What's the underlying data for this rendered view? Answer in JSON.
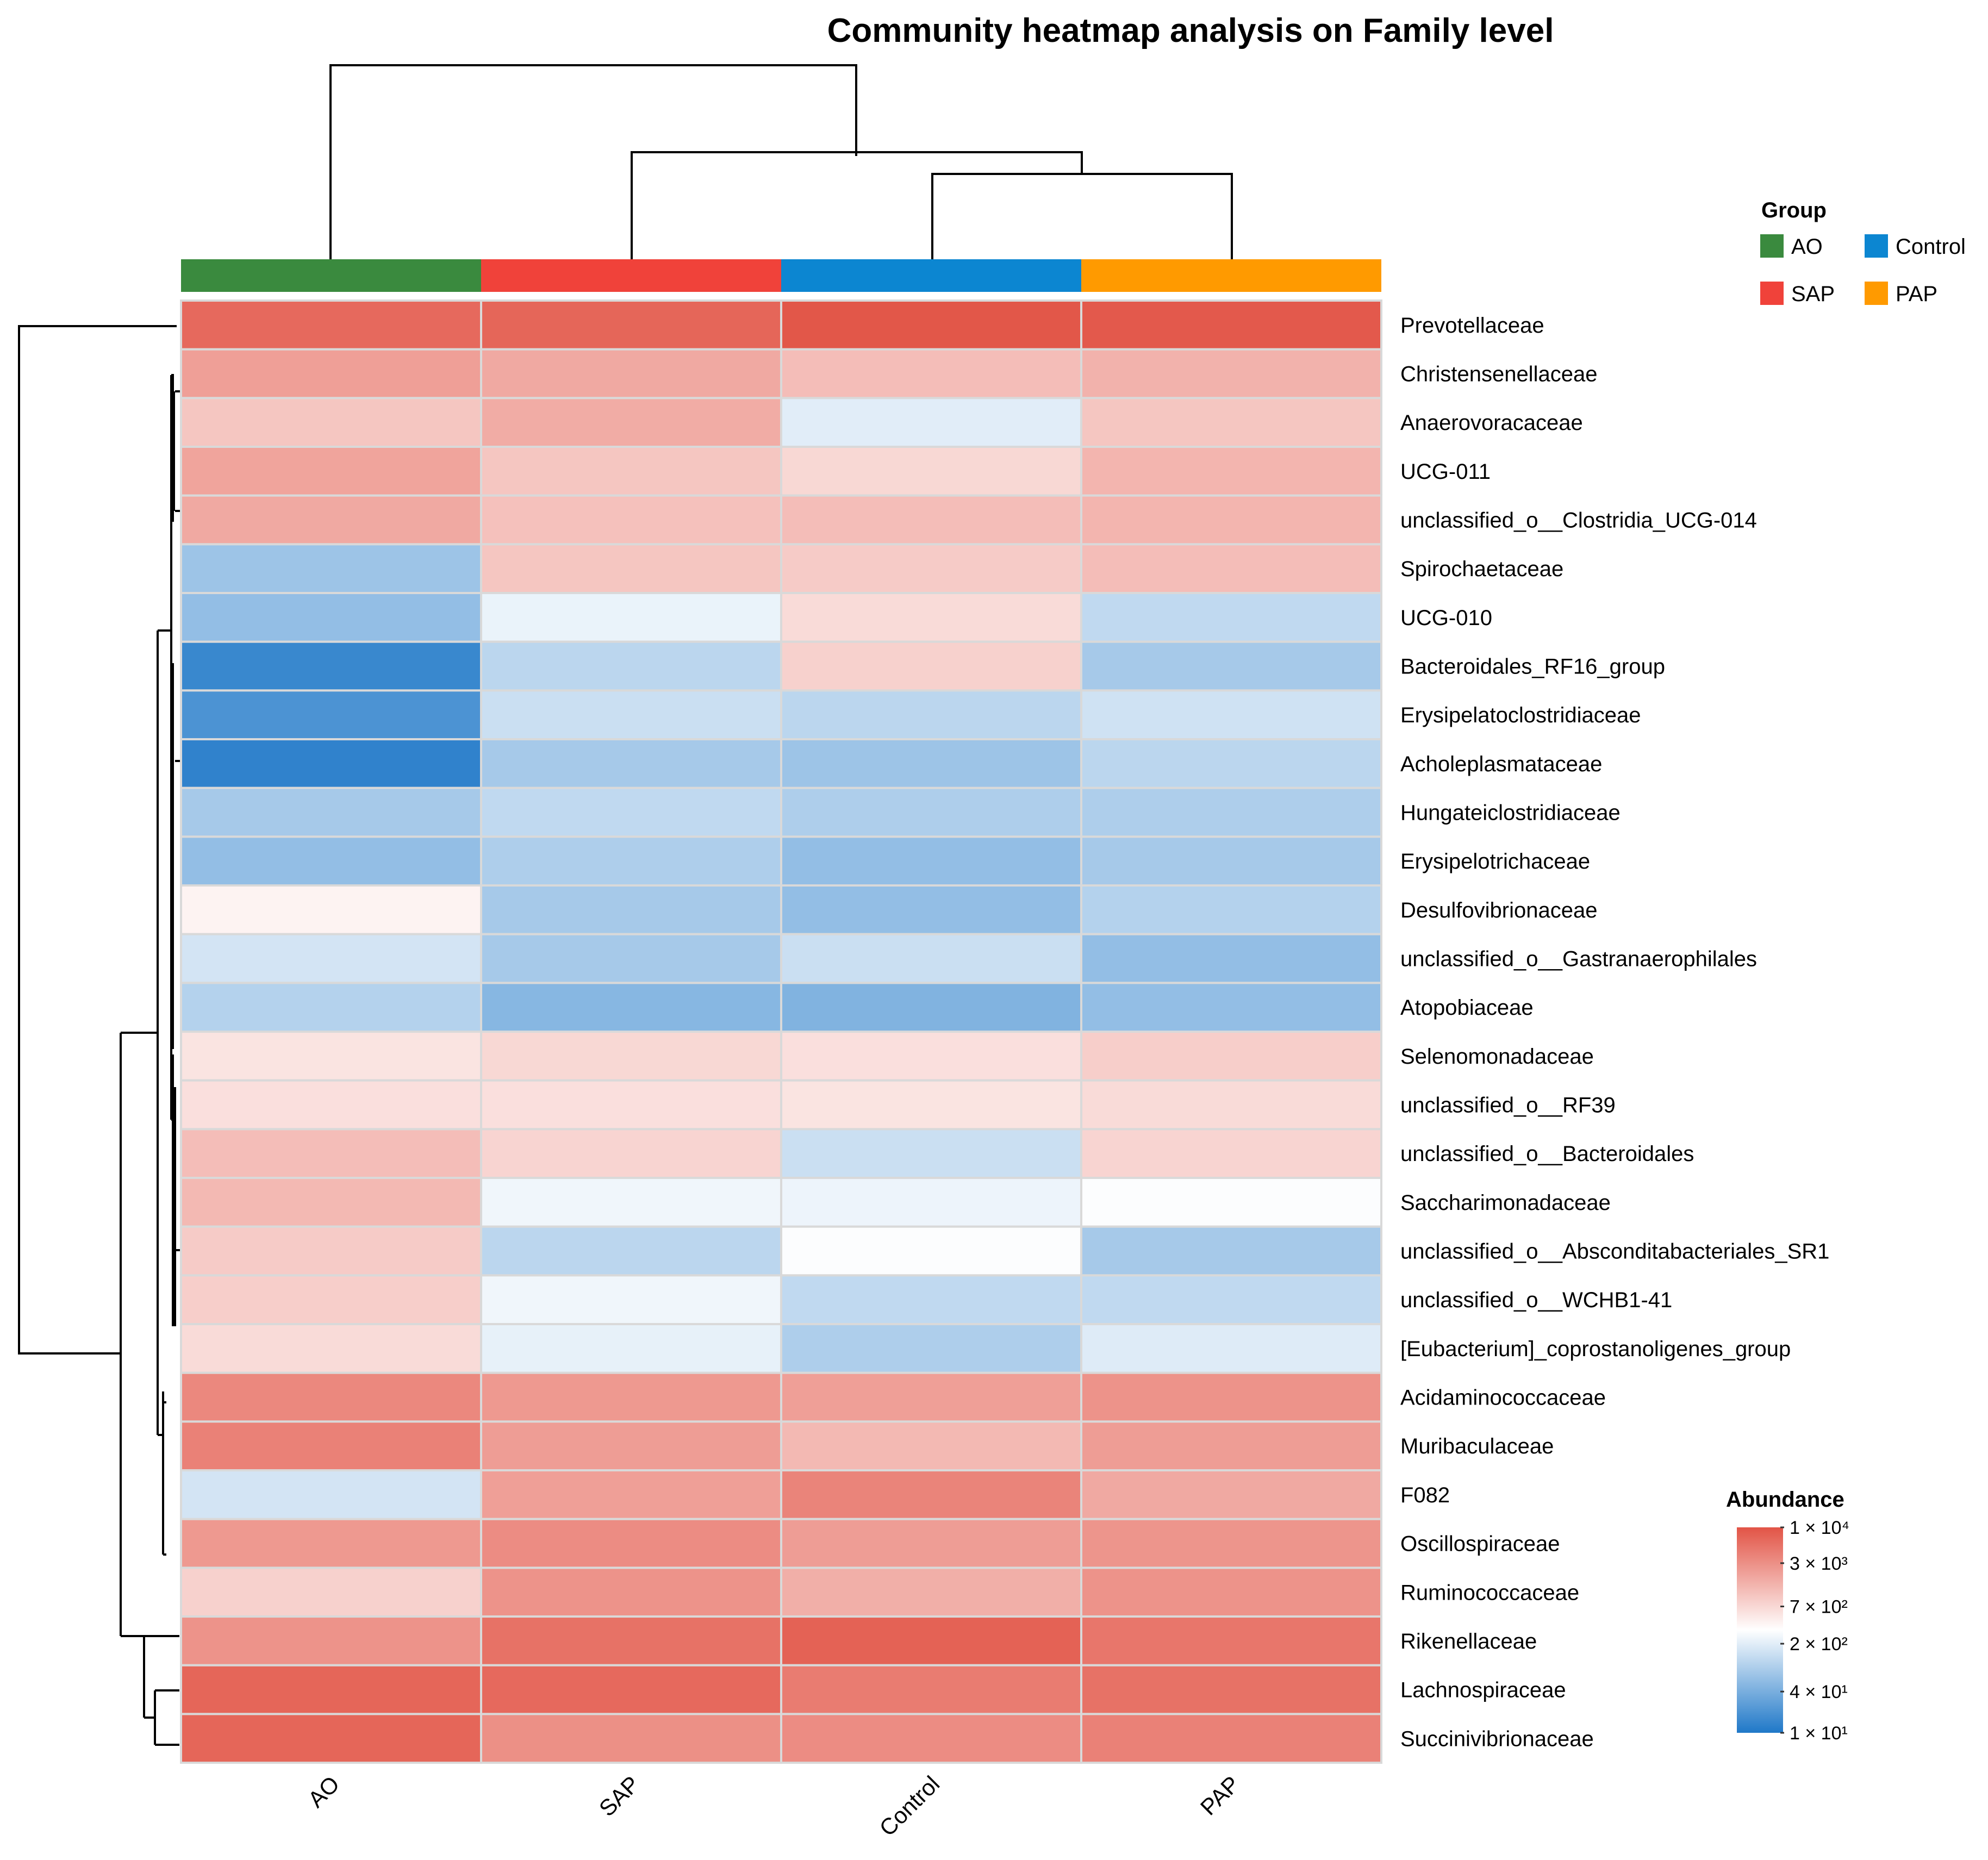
{
  "chart_data": {
    "type": "heatmap",
    "title": "Community heatmap analysis on Family level",
    "columns": [
      "AO",
      "SAP",
      "Control",
      "PAP"
    ],
    "column_groups": [
      "AO",
      "SAP",
      "Control",
      "PAP"
    ],
    "rows": [
      "Prevotellaceae",
      "Christensenellaceae",
      "Anaerovoracaceae",
      "UCG-011",
      "unclassified_o__Clostridia_UCG-014",
      "Spirochaetaceae",
      "UCG-010",
      "Bacteroidales_RF16_group",
      "Erysipelatoclostridiaceae",
      "Acholeplasmataceae",
      "Hungateiclostridiaceae",
      "Erysipelotrichaceae",
      "Desulfovibrionaceae",
      "unclassified_o__Gastranaerophilales",
      "Atopobiaceae",
      "Selenomonadaceae",
      "unclassified_o__RF39",
      "unclassified_o__Bacteroidales",
      "Saccharimonadaceae",
      "unclassified_o__Absconditabacteriales_SR1",
      "unclassified_o__WCHB1-41",
      "[Eubacterium]_coprostanoligenes_group",
      "Acidaminococcaceae",
      "Muribaculaceae",
      "F082",
      "Oscillospiraceae",
      "Ruminococcaceae",
      "Rikenellaceae",
      "Lachnospiraceae",
      "Succinivibrionaceae"
    ],
    "values": [
      [
        6500,
        7000,
        9500,
        9000
      ],
      [
        2200,
        1800,
        1200,
        1500
      ],
      [
        1000,
        1700,
        200,
        1000
      ],
      [
        2000,
        1000,
        700,
        1400
      ],
      [
        1800,
        1100,
        1200,
        1400
      ],
      [
        70,
        1000,
        900,
        1200
      ],
      [
        60,
        230,
        650,
        120
      ],
      [
        15,
        110,
        800,
        80
      ],
      [
        20,
        140,
        110,
        150
      ],
      [
        13,
        80,
        70,
        110
      ],
      [
        80,
        120,
        90,
        90
      ],
      [
        60,
        90,
        60,
        80
      ],
      [
        400,
        80,
        60,
        100
      ],
      [
        160,
        80,
        140,
        60
      ],
      [
        100,
        50,
        45,
        60
      ],
      [
        550,
        700,
        600,
        850
      ],
      [
        600,
        600,
        550,
        650
      ],
      [
        1200,
        750,
        140,
        750
      ],
      [
        1300,
        250,
        240,
        300
      ],
      [
        900,
        110,
        300,
        80
      ],
      [
        850,
        250,
        120,
        120
      ],
      [
        650,
        220,
        90,
        190
      ],
      [
        3500,
        2500,
        2200,
        2800
      ],
      [
        4000,
        2300,
        1300,
        2300
      ],
      [
        160,
        2200,
        3800,
        1800
      ],
      [
        2500,
        3200,
        2300,
        2700
      ],
      [
        800,
        2800,
        1600,
        2800
      ],
      [
        2800,
        5500,
        7500,
        5000
      ],
      [
        7000,
        6500,
        4500,
        5500
      ],
      [
        7000,
        3000,
        3200,
        4000
      ]
    ],
    "scale": "log10",
    "color_range": [
      10,
      10000
    ],
    "colors": {
      "low": "#1F78C8",
      "mid": "#FFFFFF",
      "high": "#E25446",
      "cell_border": "#D9D9D9"
    },
    "legend_group": {
      "title": "Group",
      "items": [
        {
          "label": "AO",
          "color": "#3A8A3E"
        },
        {
          "label": "Control",
          "color": "#0C86D1"
        },
        {
          "label": "SAP",
          "color": "#F0423A"
        },
        {
          "label": "PAP",
          "color": "#FF9A00"
        }
      ]
    },
    "legend_abundance": {
      "title": "Abundance",
      "ticks": [
        {
          "label": "1 × 10⁴",
          "value": 10000
        },
        {
          "label": "3 × 10³",
          "value": 3000
        },
        {
          "label": "7 × 10²",
          "value": 700
        },
        {
          "label": "2 × 10²",
          "value": 200
        },
        {
          "label": "4 × 10¹",
          "value": 40
        },
        {
          "label": "1 × 10¹",
          "value": 10
        }
      ]
    }
  }
}
